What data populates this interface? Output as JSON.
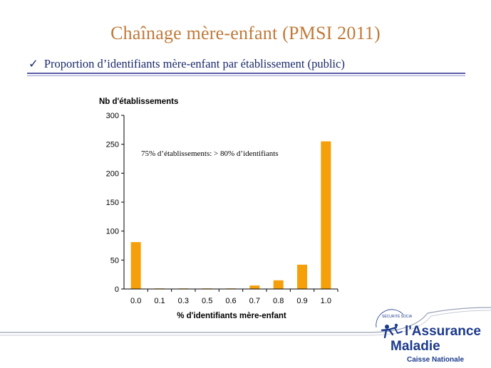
{
  "slide": {
    "title": "Chaînage mère-enfant (PMSI 2011)",
    "subtitle": "Proportion d’identifiants mère-enfant par établissement (public)",
    "check_icon": "checkmark-icon",
    "accent_color": "#c07a3a",
    "text_color": "#1b2a6b"
  },
  "chart_data": {
    "type": "bar",
    "ylabel": "Nb d'établissements",
    "xlabel": "% d'identifiants mère-enfant",
    "categories": [
      "0.0",
      "0.1",
      "0.3",
      "0.5",
      "0.6",
      "0.7",
      "0.8",
      "0.9",
      "1.0"
    ],
    "values": [
      81,
      1,
      1,
      1,
      1,
      6,
      15,
      42,
      255
    ],
    "ylim": [
      0,
      300
    ],
    "yticks": [
      "0",
      "50",
      "100",
      "150",
      "200",
      "250",
      "300"
    ],
    "annotation": "75% d’établissements: > 80% d’identifiants",
    "bar_color": "#f5a00a",
    "grid": false
  },
  "logo": {
    "line1": "l'Assurance",
    "line2": "Maladie",
    "line3": "Caisse Nationale",
    "color": "#1c3a8c"
  }
}
